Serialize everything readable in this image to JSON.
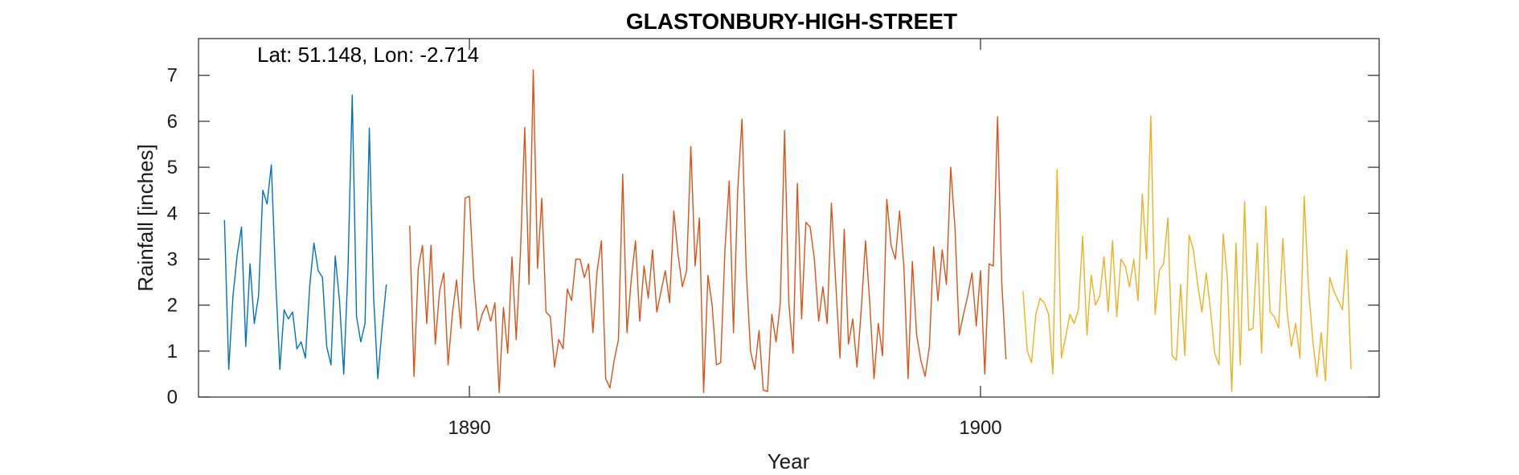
{
  "chart_data": {
    "type": "line",
    "title": "GLASTONBURY-HIGH-STREET",
    "xlabel": "Year",
    "ylabel": "Rainfall [inches]",
    "annotation": "Lat: 51.148, Lon: -2.714",
    "xlim": [
      1884.7,
      1907.8
    ],
    "ylim": [
      0,
      7.8
    ],
    "xticks": [
      1890,
      1900
    ],
    "yticks": [
      0,
      1,
      2,
      3,
      4,
      5,
      6,
      7
    ],
    "grid": false,
    "legend": "none",
    "series": [
      {
        "color": "#0072BD",
        "start": 1885.208,
        "values": [
          3.85,
          0.6,
          2.2,
          3.1,
          3.7,
          1.1,
          2.9,
          1.6,
          2.2,
          4.5,
          4.2,
          5.05,
          2.6,
          0.6,
          1.9,
          1.7,
          1.85,
          1.05,
          1.2,
          0.85,
          2.4,
          3.35,
          2.75,
          2.6,
          1.1,
          0.7,
          3.07,
          2.1,
          0.5,
          2.8,
          6.57,
          1.75,
          1.2,
          1.6,
          5.85,
          2.2,
          0.4,
          1.5,
          2.45
        ]
      },
      {
        "color": "#D95319",
        "start": 1888.833,
        "values": [
          3.73,
          0.45,
          2.8,
          3.3,
          1.6,
          3.3,
          1.15,
          2.3,
          2.7,
          0.7,
          1.8,
          2.55,
          1.5,
          4.33,
          4.37,
          2.6,
          1.45,
          1.8,
          2.0,
          1.65,
          2.05,
          0.1,
          1.95,
          0.95,
          3.05,
          1.25,
          3.15,
          5.87,
          2.45,
          7.12,
          2.8,
          4.33,
          1.85,
          1.75,
          0.65,
          1.25,
          1.05,
          2.35,
          2.1,
          3.0,
          3.0,
          2.6,
          2.9,
          1.4,
          2.75,
          3.4,
          0.4,
          0.2,
          0.8,
          1.25,
          4.85,
          1.4,
          2.55,
          3.4,
          1.65,
          2.85,
          2.15,
          3.2,
          1.85,
          2.3,
          2.75,
          2.05,
          4.05,
          3.1,
          2.4,
          2.75,
          5.45,
          2.85,
          3.9,
          0.1,
          2.65,
          2.0,
          0.7,
          0.75,
          3.2,
          4.7,
          1.4,
          4.5,
          6.05,
          2.75,
          1.0,
          0.6,
          1.45,
          0.15,
          0.12,
          1.8,
          1.2,
          2.05,
          5.8,
          2.05,
          0.95,
          4.65,
          1.7,
          3.8,
          3.7,
          3.0,
          1.65,
          2.4,
          1.6,
          4.22,
          2.5,
          0.85,
          3.65,
          1.15,
          1.7,
          0.65,
          1.9,
          3.4,
          2.05,
          0.4,
          1.6,
          0.9,
          4.3,
          3.3,
          3.0,
          4.05,
          2.85,
          0.4,
          2.95,
          1.35,
          0.8,
          0.45,
          1.1,
          3.27,
          2.1,
          3.2,
          2.45,
          5.0,
          3.7,
          1.35,
          1.8,
          2.2,
          2.7,
          1.55,
          2.75,
          0.5,
          2.9,
          2.85,
          6.1,
          2.5,
          0.82
        ]
      },
      {
        "color": "#EDB120",
        "start": 1900.833,
        "values": [
          2.3,
          1.0,
          0.75,
          1.8,
          2.15,
          2.05,
          1.8,
          0.5,
          4.95,
          0.85,
          1.3,
          1.8,
          1.6,
          1.9,
          3.5,
          1.35,
          2.65,
          2.0,
          2.2,
          3.05,
          1.85,
          3.4,
          1.75,
          3.0,
          2.85,
          2.4,
          3.0,
          2.1,
          4.42,
          3.0,
          6.12,
          1.8,
          2.75,
          2.9,
          3.9,
          0.9,
          0.8,
          2.45,
          0.9,
          3.52,
          3.2,
          2.45,
          1.85,
          2.7,
          1.9,
          0.95,
          0.7,
          3.55,
          2.55,
          0.12,
          3.35,
          0.7,
          4.25,
          1.45,
          1.5,
          3.35,
          0.95,
          4.15,
          1.85,
          1.75,
          1.5,
          3.45,
          1.85,
          1.1,
          1.6,
          0.85,
          4.37,
          2.4,
          1.25,
          0.45,
          1.4,
          0.35,
          2.6,
          2.3,
          2.1,
          1.9,
          3.2,
          0.6
        ]
      }
    ]
  }
}
